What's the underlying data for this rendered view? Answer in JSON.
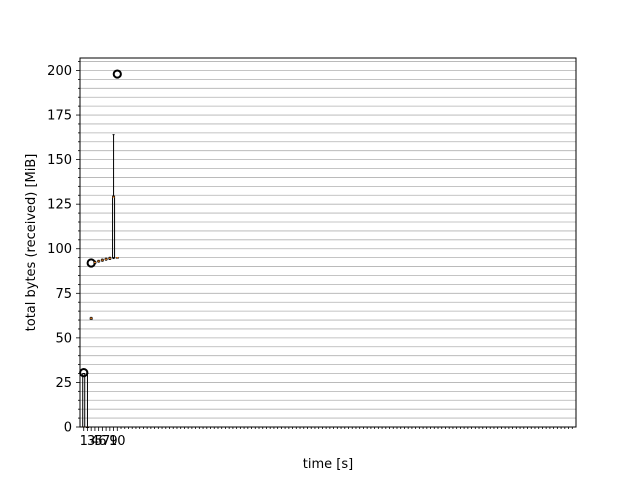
{
  "chart_data": {
    "type": "box",
    "title": "",
    "xlabel": "time [s]",
    "ylabel": "total bytes (received) [MiB]",
    "xlim": [
      0,
      133
    ],
    "ylim": [
      0,
      207
    ],
    "y_ticks": [
      0,
      25,
      50,
      75,
      100,
      125,
      150,
      175,
      200
    ],
    "y_minor_step": 5,
    "x_tick_labels": [
      "1",
      "3",
      "4",
      "5",
      "6",
      "7",
      "9",
      "10"
    ],
    "grid": "horizontal-minor",
    "median_color": "#e07b20",
    "box_color": "#000000",
    "boxes": [
      {
        "x": 1,
        "whisker_low": 0,
        "q1": 0,
        "median": 0,
        "q3": 30,
        "whisker_high": 30,
        "fliers": [
          30.5
        ]
      },
      {
        "x": 2,
        "whisker_low": 0,
        "q1": 0,
        "median": 0,
        "q3": 0,
        "whisker_high": 30,
        "fliers": []
      },
      {
        "x": 3,
        "whisker_low": 60.5,
        "q1": 60.5,
        "median": 61,
        "q3": 61.2,
        "whisker_high": 61.5,
        "fliers": [
          92
        ]
      },
      {
        "x": 4,
        "whisker_low": 91.8,
        "q1": 92,
        "median": 92.3,
        "q3": 92.6,
        "whisker_high": 93,
        "fliers": []
      },
      {
        "x": 5,
        "whisker_low": 92.5,
        "q1": 92.8,
        "median": 93,
        "q3": 93.2,
        "whisker_high": 93.5,
        "fliers": []
      },
      {
        "x": 6,
        "whisker_low": 93,
        "q1": 93.3,
        "median": 93.6,
        "q3": 93.9,
        "whisker_high": 94.2,
        "fliers": []
      },
      {
        "x": 7,
        "whisker_low": 93.6,
        "q1": 93.9,
        "median": 94.1,
        "q3": 94.4,
        "whisker_high": 94.7,
        "fliers": []
      },
      {
        "x": 8,
        "whisker_low": 94,
        "q1": 94.3,
        "median": 94.6,
        "q3": 94.9,
        "whisker_high": 95.2,
        "fliers": []
      },
      {
        "x": 9,
        "whisker_low": 94.5,
        "q1": 95,
        "median": 129,
        "q3": 129.5,
        "whisker_high": 164,
        "fliers": []
      },
      {
        "x": 10,
        "whisker_low": 95,
        "q1": 95,
        "median": 95,
        "q3": 95,
        "whisker_high": 95,
        "fliers": [
          198
        ]
      }
    ]
  }
}
